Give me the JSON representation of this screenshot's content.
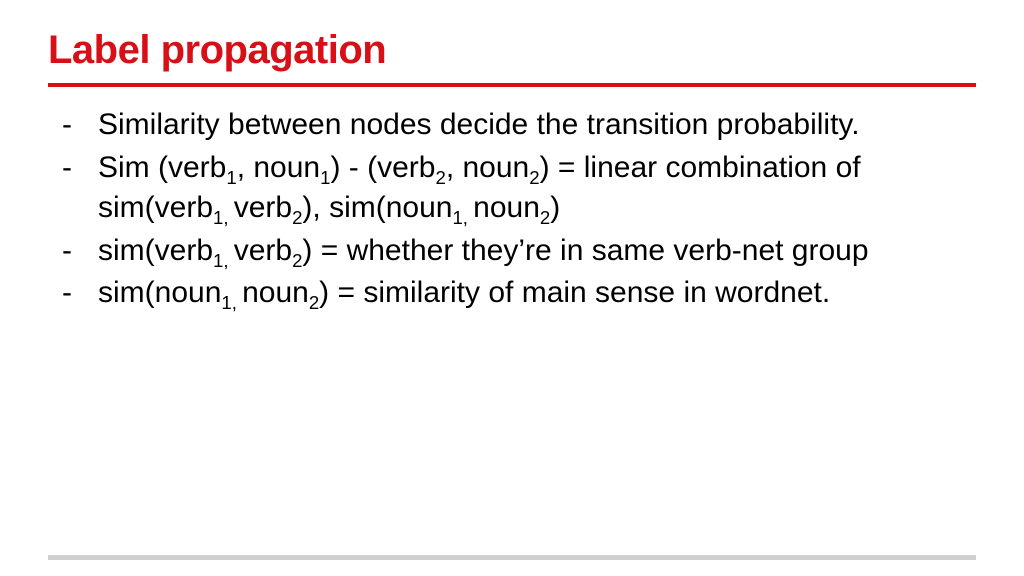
{
  "title": "Label propagation",
  "title_color": "#d90f17",
  "rule_color": "#d90f17",
  "background_color": "#ffffff",
  "body_color": "#000000",
  "title_fontsize": 40,
  "body_fontsize": 30,
  "bullets": [
    {
      "segments": [
        {
          "t": "Similarity between nodes decide the transition probability."
        }
      ]
    },
    {
      "segments": [
        {
          "t": "Sim (verb"
        },
        {
          "t": "1",
          "sub": true
        },
        {
          "t": ", noun"
        },
        {
          "t": "1",
          "sub": true
        },
        {
          "t": ") - (verb"
        },
        {
          "t": "2",
          "sub": true
        },
        {
          "t": ", noun"
        },
        {
          "t": "2",
          "sub": true
        },
        {
          "t": ") = linear combination of sim(verb"
        },
        {
          "t": "1, ",
          "sub": true
        },
        {
          "t": "verb"
        },
        {
          "t": "2",
          "sub": true
        },
        {
          "t": "), sim(noun"
        },
        {
          "t": "1, ",
          "sub": true
        },
        {
          "t": "noun"
        },
        {
          "t": "2",
          "sub": true
        },
        {
          "t": ")"
        }
      ]
    },
    {
      "segments": [
        {
          "t": "sim(verb"
        },
        {
          "t": "1, ",
          "sub": true
        },
        {
          "t": "verb"
        },
        {
          "t": "2",
          "sub": true
        },
        {
          "t": ") = whether they’re in same verb-net group"
        }
      ]
    },
    {
      "segments": [
        {
          "t": "sim(noun"
        },
        {
          "t": "1, ",
          "sub": true
        },
        {
          "t": "noun"
        },
        {
          "t": "2",
          "sub": true
        },
        {
          "t": ") = similarity of main sense in wordnet."
        }
      ]
    }
  ],
  "footer_bar_color": "#d0d0d0"
}
